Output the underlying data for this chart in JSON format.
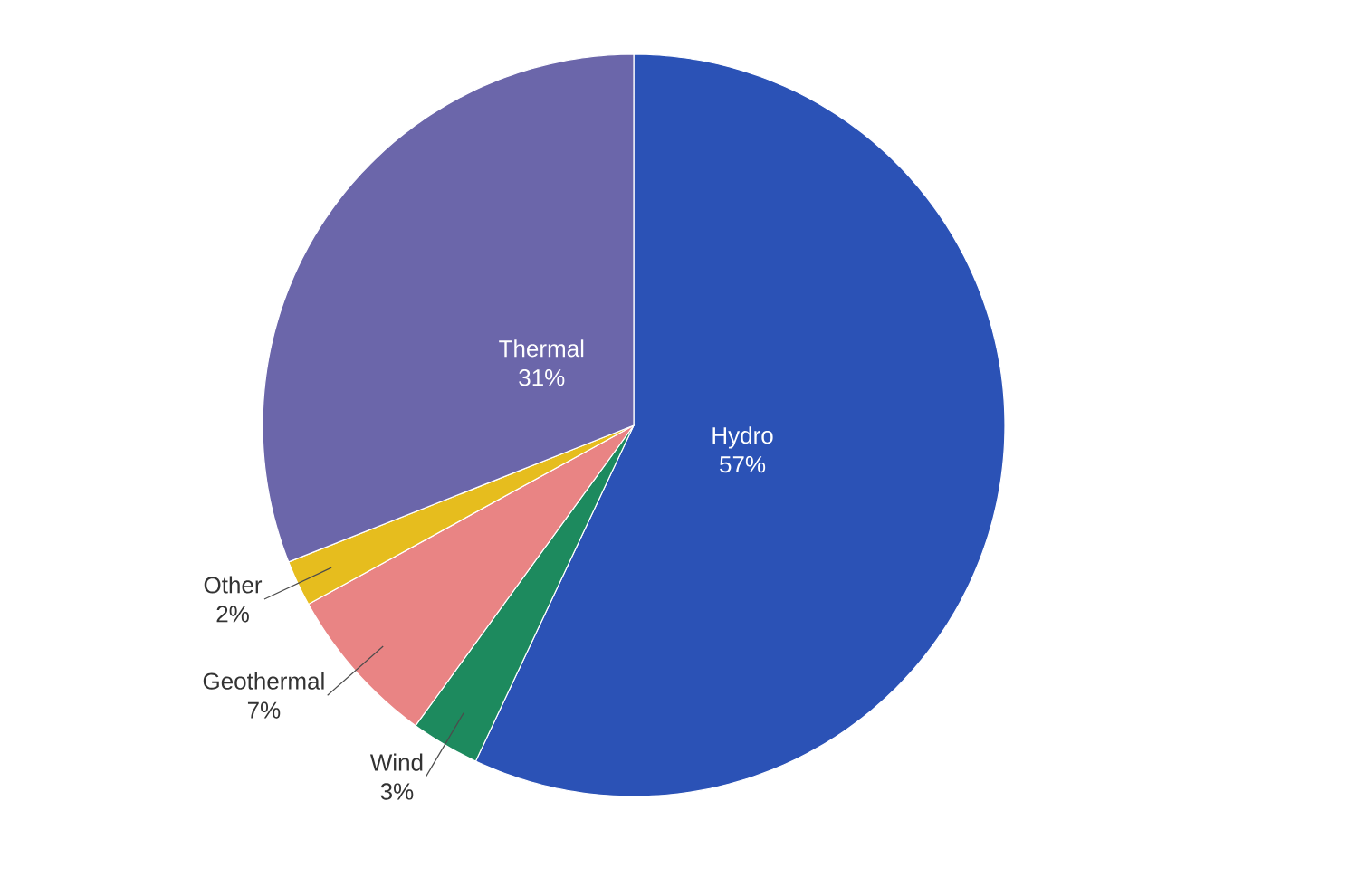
{
  "chart_data": {
    "type": "pie",
    "categories": [
      "Hydro",
      "Wind",
      "Geothermal",
      "Other",
      "Thermal"
    ],
    "values": [
      57,
      3,
      7,
      2,
      31
    ],
    "value_labels": [
      "57%",
      "3%",
      "7%",
      "2%",
      "31%"
    ],
    "colors": [
      "#2b52b6",
      "#1d8a5e",
      "#e98484",
      "#e6bd1e",
      "#6b66aa"
    ]
  }
}
